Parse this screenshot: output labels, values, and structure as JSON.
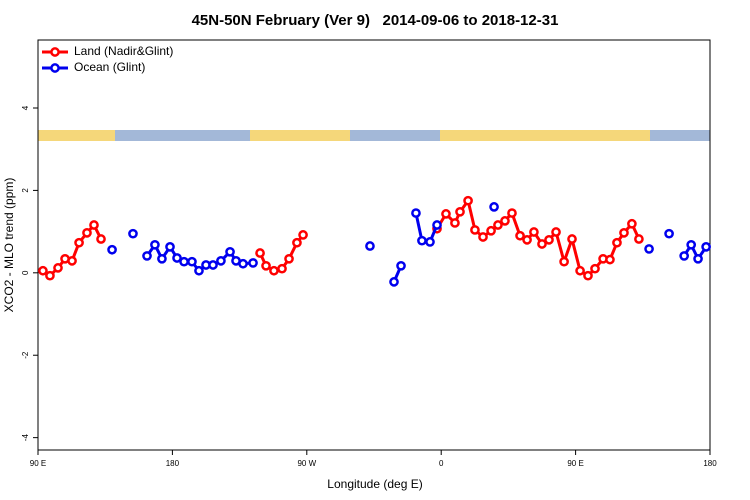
{
  "chart_data": {
    "type": "line",
    "title": "45N-50N February (Ver 9)   2014-09-06 to 2018-12-31",
    "xlabel": "Longitude (deg E)",
    "ylabel": "XCO2 - MLO trend (ppm)",
    "xlim": [
      90,
      540
    ],
    "ylim": [
      -4.3,
      5.65
    ],
    "xticks": [
      {
        "value": 90,
        "label": "90 E"
      },
      {
        "value": 180,
        "label": "180"
      },
      {
        "value": 270,
        "label": "90 W"
      },
      {
        "value": 360,
        "label": "0"
      },
      {
        "value": 450,
        "label": "90 E"
      },
      {
        "value": 540,
        "label": "180"
      }
    ],
    "yticks": [
      -4,
      -2,
      0,
      2,
      4
    ],
    "legend": "topleft",
    "series": [
      {
        "name": "Land (Nadir&Glint)",
        "color": "#ff0000",
        "x": [
          93.3,
          98,
          103.4,
          108.1,
          112.8,
          117.5,
          122.8,
          127.5,
          132.2,
          null,
          238.7,
          242.7,
          248,
          253.4,
          258.1,
          263.4,
          267.5,
          null,
          357.2,
          363.2,
          369.2,
          372.6,
          378.0,
          382.6,
          388.0,
          393.4,
          398.0,
          402.7,
          407.4,
          412.8,
          417.5,
          422.1,
          427.5,
          432.2,
          436.9,
          442.3,
          447.6,
          453.0,
          458.3,
          463.0,
          468.4,
          473.0,
          477.7,
          482.4,
          487.7,
          492.4
        ],
        "values": [
          0.05,
          -0.07,
          0.12,
          0.34,
          0.29,
          0.73,
          0.97,
          1.16,
          0.82,
          null,
          0.48,
          0.17,
          0.05,
          0.1,
          0.34,
          0.73,
          0.92,
          null,
          1.07,
          1.43,
          1.21,
          1.48,
          1.75,
          1.04,
          0.87,
          1.02,
          1.16,
          1.26,
          1.45,
          0.9,
          0.8,
          0.99,
          0.7,
          0.8,
          0.99,
          0.27,
          0.82,
          0.05,
          -0.07,
          0.1,
          0.34,
          0.32,
          0.73,
          0.97,
          1.19,
          0.82
        ]
      },
      {
        "name": "Ocean (Glint)",
        "color": "#0000ee",
        "x": [
          139.6,
          null,
          153.6,
          null,
          163.0,
          168.3,
          173.0,
          178.4,
          183.1,
          187.8,
          193.1,
          197.8,
          202.5,
          207.2,
          212.5,
          218.6,
          222.6,
          227.3,
          234.0,
          null,
          312.3,
          null,
          328.4,
          333.1,
          null,
          343.1,
          347.1,
          352.5,
          357.2,
          null,
          395.4,
          null,
          499.2,
          null,
          512.6,
          null,
          522.7,
          527.4,
          532.0,
          537.4
        ],
        "values": [
          0.56,
          null,
          0.95,
          null,
          0.41,
          0.68,
          0.34,
          0.63,
          0.36,
          0.27,
          0.27,
          0.05,
          0.19,
          0.19,
          0.29,
          0.51,
          0.29,
          0.22,
          0.24,
          null,
          0.65,
          null,
          -0.22,
          0.17,
          null,
          1.45,
          0.78,
          0.75,
          1.16,
          null,
          1.6,
          null,
          0.58,
          null,
          0.95,
          null,
          0.41,
          0.68,
          0.34,
          0.63
        ]
      }
    ]
  }
}
